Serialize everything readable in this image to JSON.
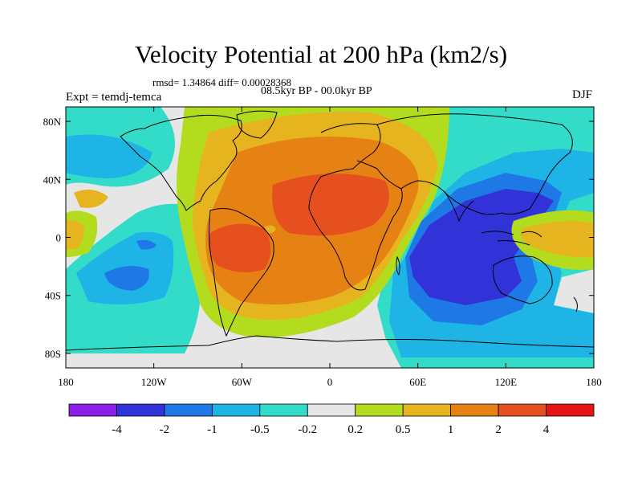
{
  "title": "Velocity Potential at 200 hPa (km2/s)",
  "stats": "rmsd= 1.34864 diff= 0.00028368",
  "period": "08.5kyr BP - 00.0kyr BP",
  "expt": "Expt = temdj-temca",
  "season": "DJF",
  "axes": {
    "x_ticks": [
      {
        "lon": -180,
        "label": "180"
      },
      {
        "lon": -120,
        "label": "120W"
      },
      {
        "lon": -60,
        "label": "60W"
      },
      {
        "lon": 0,
        "label": "0"
      },
      {
        "lon": 60,
        "label": "60E"
      },
      {
        "lon": 120,
        "label": "120E"
      },
      {
        "lon": 180,
        "label": "180"
      }
    ],
    "y_ticks": [
      {
        "lat": 80,
        "label": "80N"
      },
      {
        "lat": 40,
        "label": "40N"
      },
      {
        "lat": 0,
        "label": "0"
      },
      {
        "lat": -40,
        "label": "40S"
      },
      {
        "lat": -80,
        "label": "80S"
      }
    ],
    "lon_range": [
      -180,
      180
    ],
    "lat_range": [
      -90,
      90
    ]
  },
  "colorbar": {
    "colors": [
      "#8c1fe6",
      "#3232d9",
      "#1e78e6",
      "#1eb4e6",
      "#32dcc8",
      "#e6e6e6",
      "#b4dc1e",
      "#e6b41e",
      "#e68214",
      "#e6501e",
      "#e61414"
    ],
    "labels": [
      "-4",
      "-2",
      "-1",
      "-0.5",
      "-0.2",
      "0.2",
      "0.5",
      "1",
      "2",
      "4"
    ]
  },
  "chart_data": {
    "type": "filled-contour-map",
    "title": "Velocity Potential at 200 hPa (km2/s)",
    "variable": "velocity potential difference",
    "units": "km2/s",
    "level_hPa": 200,
    "season": "DJF",
    "experiment": "temdj-temca",
    "period": "08.5kyr BP - 00.0kyr BP",
    "rmsd": 1.34864,
    "diff": 0.00028368,
    "contour_levels": [
      -4,
      -2,
      -1,
      -0.5,
      -0.2,
      0.2,
      0.5,
      1,
      2,
      4
    ],
    "features": [
      {
        "name": "positive anomaly over South America",
        "lon": -55,
        "lat": -10,
        "value": 4
      },
      {
        "name": "positive anomaly over N Africa / Arabia",
        "lon": 10,
        "lat": 25,
        "value": 3
      },
      {
        "name": "negative anomaly over Indian Ocean / Maritime Continent",
        "lon": 95,
        "lat": -10,
        "value": -3
      },
      {
        "name": "negative anomaly over South Pacific",
        "lon": -145,
        "lat": -30,
        "value": -1
      },
      {
        "name": "positive anomaly over western Pacific",
        "lon": 155,
        "lat": 5,
        "value": 1
      }
    ]
  }
}
